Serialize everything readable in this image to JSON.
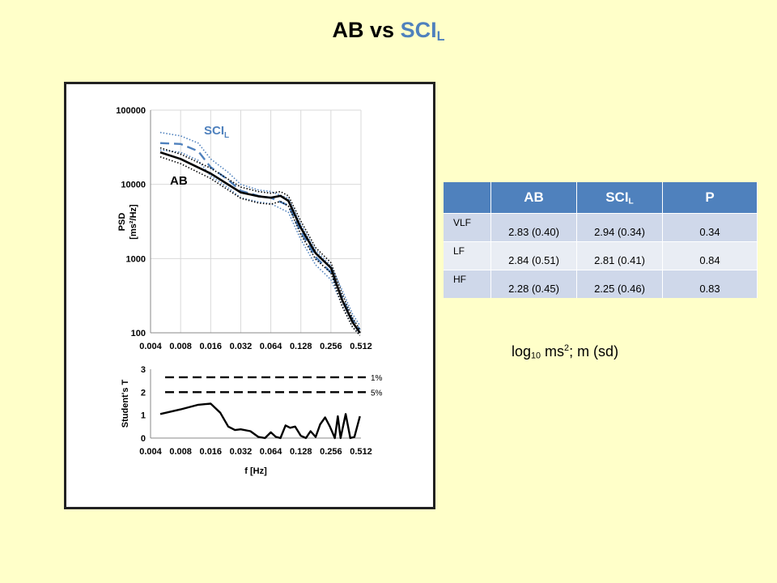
{
  "title": {
    "main": "AB vs ",
    "accent": "SCI",
    "accent_sub": "L",
    "accent_color": "#4f81bd"
  },
  "chart_data": [
    {
      "type": "line",
      "ylabel": "PSD [ms²/Hz]",
      "yscale": "log",
      "ylim": [
        100,
        100000
      ],
      "y_ticks": [
        "100000",
        "10000",
        "1000",
        "100"
      ],
      "xscale": "log2",
      "x_ticks": [
        "0.004",
        "0.008",
        "0.016",
        "0.032",
        "0.064",
        "0.128",
        "0.256",
        "0.512"
      ],
      "grid": true,
      "labels": [
        {
          "text": "SCI",
          "sub": "L",
          "color": "#4f81bd"
        },
        {
          "text": "AB",
          "color": "#000000"
        }
      ],
      "series": [
        {
          "name": "AB",
          "style": "solid",
          "color": "#000000",
          "x": [
            0.005,
            0.008,
            0.016,
            0.032,
            0.048,
            0.064,
            0.08,
            0.096,
            0.128,
            0.18,
            0.256,
            0.33,
            0.42,
            0.5
          ],
          "y": [
            27000,
            22000,
            14000,
            7800,
            6900,
            6600,
            7000,
            6000,
            2600,
            1180,
            750,
            280,
            140,
            100
          ]
        },
        {
          "name": "AB band upper",
          "style": "dotted",
          "color": "#000000",
          "x": [
            0.005,
            0.008,
            0.016,
            0.032,
            0.048,
            0.064,
            0.08,
            0.096,
            0.128,
            0.18,
            0.256,
            0.33,
            0.42,
            0.5
          ],
          "y": [
            31000,
            25500,
            16500,
            9200,
            8000,
            7600,
            8000,
            7000,
            3200,
            1400,
            880,
            340,
            160,
            110
          ]
        },
        {
          "name": "AB band lower",
          "style": "dotted",
          "color": "#000000",
          "x": [
            0.005,
            0.008,
            0.016,
            0.032,
            0.048,
            0.064,
            0.08,
            0.096,
            0.128,
            0.18,
            0.256,
            0.33,
            0.42,
            0.5
          ],
          "y": [
            23500,
            19000,
            12000,
            6500,
            5600,
            5400,
            5900,
            5100,
            2100,
            980,
            640,
            230,
            120,
            92
          ]
        },
        {
          "name": "SCI_L",
          "style": "dashed",
          "color": "#4f81bd",
          "x": [
            0.005,
            0.008,
            0.012,
            0.016,
            0.024,
            0.032,
            0.048,
            0.064,
            0.096,
            0.128,
            0.18,
            0.256,
            0.33,
            0.42,
            0.5
          ],
          "y": [
            36000,
            35000,
            28000,
            17000,
            11500,
            8200,
            7000,
            6600,
            5200,
            2300,
            1050,
            650,
            300,
            150,
            110
          ]
        },
        {
          "name": "SCI_L band upper",
          "style": "dotted",
          "color": "#4f81bd",
          "x": [
            0.005,
            0.008,
            0.012,
            0.016,
            0.024,
            0.032,
            0.048,
            0.064,
            0.096,
            0.128,
            0.18,
            0.256,
            0.33,
            0.42,
            0.5
          ],
          "y": [
            50000,
            45000,
            36000,
            22000,
            14500,
            10000,
            8400,
            8000,
            6500,
            2900,
            1300,
            800,
            380,
            180,
            125
          ]
        },
        {
          "name": "SCI_L band lower",
          "style": "dotted",
          "color": "#4f81bd",
          "x": [
            0.005,
            0.008,
            0.012,
            0.016,
            0.024,
            0.032,
            0.048,
            0.064,
            0.096,
            0.128,
            0.18,
            0.256,
            0.33,
            0.42,
            0.5
          ],
          "y": [
            29000,
            27000,
            21000,
            13000,
            9000,
            6600,
            5800,
            5500,
            4200,
            1800,
            820,
            520,
            240,
            120,
            95
          ]
        }
      ]
    },
    {
      "type": "line",
      "ylabel": "Student's T",
      "xlabel": "f [Hz]",
      "ylim": [
        0,
        3
      ],
      "y_ticks": [
        "3",
        "2",
        "1",
        "0"
      ],
      "xscale": "log2",
      "x_ticks": [
        "0.004",
        "0.008",
        "0.016",
        "0.032",
        "0.064",
        "0.128",
        "0.256",
        "0.512"
      ],
      "reference_lines": [
        {
          "label": "1%",
          "value": 2.65
        },
        {
          "label": "5%",
          "value": 2.0
        }
      ],
      "series": [
        {
          "name": "T",
          "style": "solid",
          "color": "#000000",
          "x": [
            0.005,
            0.008,
            0.012,
            0.016,
            0.02,
            0.024,
            0.028,
            0.032,
            0.04,
            0.048,
            0.056,
            0.064,
            0.072,
            0.08,
            0.09,
            0.1,
            0.112,
            0.128,
            0.144,
            0.16,
            0.18,
            0.2,
            0.224,
            0.25,
            0.28,
            0.3,
            0.32,
            0.36,
            0.4,
            0.44,
            0.5
          ],
          "y": [
            1.05,
            1.25,
            1.45,
            1.5,
            1.1,
            0.5,
            0.35,
            0.38,
            0.3,
            0.05,
            0.0,
            0.25,
            0.05,
            0.0,
            0.55,
            0.45,
            0.5,
            0.1,
            0.0,
            0.3,
            0.05,
            0.6,
            0.9,
            0.5,
            0.0,
            0.95,
            0.0,
            1.05,
            0.0,
            0.05,
            0.95
          ]
        }
      ]
    }
  ],
  "table": {
    "headers": [
      "",
      "AB",
      "SCI",
      "P"
    ],
    "header_sub": "L",
    "rows": [
      {
        "label": "VLF",
        "ab": "2.83 (0.40)",
        "sci": "2.94 (0.34)",
        "p": "0.34"
      },
      {
        "label": "LF",
        "ab": "2.84 (0.51)",
        "sci": "2.81 (0.41)",
        "p": "0.84"
      },
      {
        "label": "HF",
        "ab": "2.28 (0.45)",
        "sci": "2.25 (0.46)",
        "p": "0.83"
      }
    ]
  },
  "note": {
    "pre": "log",
    "sub": "10",
    "mid": " ms",
    "sup": "2",
    "post": ";  m (sd)"
  }
}
